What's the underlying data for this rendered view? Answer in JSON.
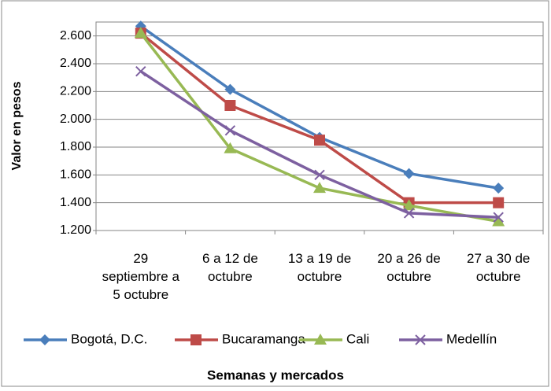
{
  "chart_data": {
    "type": "line",
    "x_label": "Semanas y mercados",
    "y_label": "Valor en pesos",
    "categories": [
      "29 septiembre a 5 octubre",
      "6 a 12 de octubre",
      "13 a 19 de octubre",
      "20 a 26 de octubre",
      "27 a 30 de octubre"
    ],
    "series": [
      {
        "name": "Bogotá, D.C.",
        "color": "#4a7ebb",
        "marker": "diamond",
        "values": [
          2670,
          2215,
          1870,
          1610,
          1505
        ]
      },
      {
        "name": "Bucaramanga",
        "color": "#be4b48",
        "marker": "square",
        "values": [
          2620,
          2100,
          1850,
          1400,
          1400
        ]
      },
      {
        "name": "Cali",
        "color": "#98b954",
        "marker": "triangle",
        "values": [
          2620,
          1790,
          1505,
          1380,
          1265
        ]
      },
      {
        "name": "Medellín",
        "color": "#7d60a0",
        "marker": "x",
        "values": [
          2345,
          1920,
          1600,
          1325,
          1295
        ]
      }
    ],
    "ylim": [
      1200,
      2700
    ],
    "yticks": [
      {
        "value": 1200,
        "label": "1.200"
      },
      {
        "value": 1400,
        "label": "1.400"
      },
      {
        "value": 1600,
        "label": "1.600"
      },
      {
        "value": 1800,
        "label": "1.800"
      },
      {
        "value": 2000,
        "label": "2.000"
      },
      {
        "value": 2200,
        "label": "2.200"
      },
      {
        "value": 2400,
        "label": "2.400"
      },
      {
        "value": 2600,
        "label": "2.600"
      }
    ],
    "grid": true,
    "legend": "bottom"
  }
}
